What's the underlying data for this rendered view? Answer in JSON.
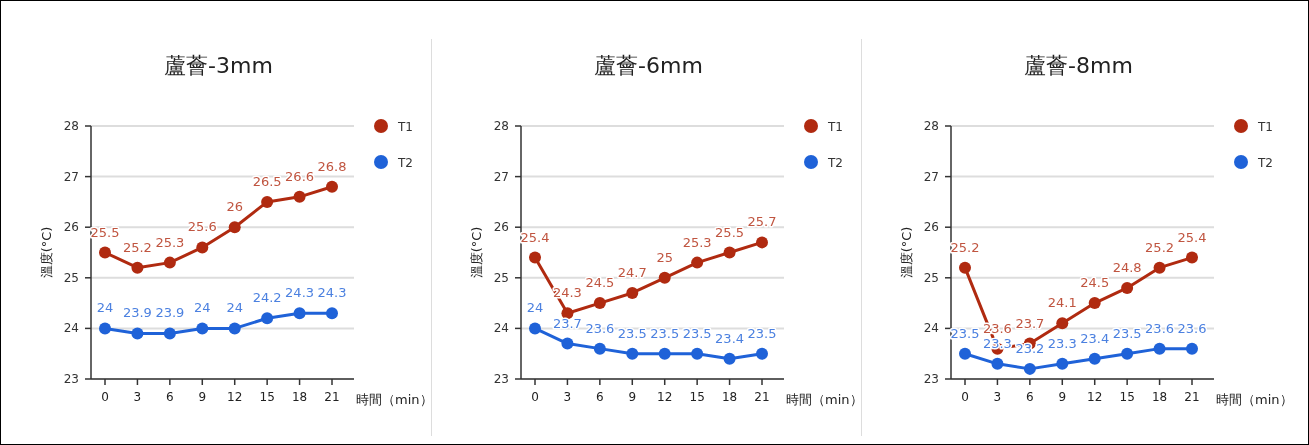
{
  "chart_data": [
    {
      "type": "line",
      "title": "蘆薈-3mm",
      "xlabel": "時間（min）",
      "ylabel": "溫度(°C)",
      "categories": [
        "0",
        "3",
        "6",
        "9",
        "12",
        "15",
        "18",
        "21"
      ],
      "ylim": [
        23,
        28
      ],
      "yticks": [
        23,
        24,
        25,
        26,
        27,
        28
      ],
      "grid": "y",
      "legend": "right",
      "marker": "circle",
      "data_labels": true,
      "series": [
        {
          "name": "T1",
          "color": "#b02a10",
          "values": [
            25.5,
            25.2,
            25.3,
            25.6,
            26,
            26.5,
            26.6,
            26.8
          ]
        },
        {
          "name": "T2",
          "color": "#1f62d8",
          "values": [
            24,
            23.9,
            23.9,
            24,
            24,
            24.2,
            24.3,
            24.3
          ]
        }
      ]
    },
    {
      "type": "line",
      "title": "蘆薈-6mm",
      "xlabel": "時間（min）",
      "ylabel": "溫度(°C)",
      "categories": [
        "0",
        "3",
        "6",
        "9",
        "12",
        "15",
        "18",
        "21"
      ],
      "ylim": [
        23,
        28
      ],
      "yticks": [
        23,
        24,
        25,
        26,
        27,
        28
      ],
      "grid": "y",
      "legend": "right",
      "marker": "circle",
      "data_labels": true,
      "series": [
        {
          "name": "T1",
          "color": "#b02a10",
          "values": [
            25.4,
            24.3,
            24.5,
            24.7,
            25,
            25.3,
            25.5,
            25.7
          ]
        },
        {
          "name": "T2",
          "color": "#1f62d8",
          "values": [
            24,
            23.7,
            23.6,
            23.5,
            23.5,
            23.5,
            23.4,
            23.5
          ]
        }
      ]
    },
    {
      "type": "line",
      "title": "蘆薈-8mm",
      "xlabel": "時間（min）",
      "ylabel": "溫度(°C)",
      "categories": [
        "0",
        "3",
        "6",
        "9",
        "12",
        "15",
        "18",
        "21"
      ],
      "ylim": [
        23,
        28
      ],
      "yticks": [
        23,
        24,
        25,
        26,
        27,
        28
      ],
      "grid": "y",
      "legend": "right",
      "marker": "circle",
      "data_labels": true,
      "series": [
        {
          "name": "T1",
          "color": "#b02a10",
          "values": [
            25.2,
            23.6,
            23.7,
            24.1,
            24.5,
            24.8,
            25.2,
            25.4
          ]
        },
        {
          "name": "T2",
          "color": "#1f62d8",
          "values": [
            23.5,
            23.3,
            23.2,
            23.3,
            23.4,
            23.5,
            23.6,
            23.6
          ]
        }
      ]
    }
  ]
}
